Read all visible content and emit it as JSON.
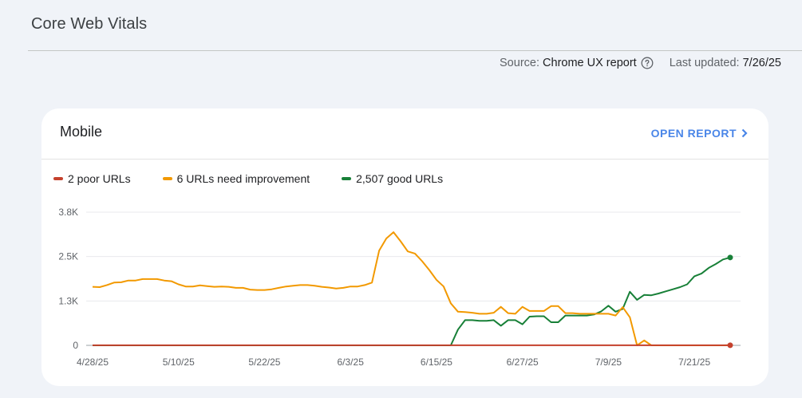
{
  "header": {
    "title": "Core Web Vitals",
    "source_label": "Source:",
    "source_value": "Chrome UX report",
    "updated_label": "Last updated:",
    "updated_value": "7/26/25"
  },
  "card": {
    "title": "Mobile",
    "open_report_label": "OPEN REPORT"
  },
  "legend": [
    {
      "label": "2 poor URLs",
      "color": "#c5412d"
    },
    {
      "label": "6 URLs need improvement",
      "color": "#f29900"
    },
    {
      "label": "2,507 good URLs",
      "color": "#188038"
    }
  ],
  "chart_data": {
    "type": "line",
    "title": "Mobile",
    "xlabel": "",
    "ylabel": "",
    "ylim": [
      0,
      3800
    ],
    "y_ticks": [
      "0",
      "1.3K",
      "2.5K",
      "3.8K"
    ],
    "x_ticks": [
      "4/28/25",
      "5/10/25",
      "5/22/25",
      "6/3/25",
      "6/15/25",
      "6/27/25",
      "7/9/25",
      "7/21/25"
    ],
    "x_start": "4/28/25",
    "x_end": "7/26/25",
    "grid": true,
    "legend_position": "top",
    "series": [
      {
        "name": "Poor",
        "color": "#c5412d",
        "values": [
          2,
          2,
          2,
          2,
          2,
          2,
          2,
          2,
          2,
          2,
          2,
          2,
          2,
          2,
          2,
          2,
          2,
          2,
          2,
          2,
          2,
          2,
          2,
          2,
          2,
          2,
          2,
          2,
          2,
          2,
          2,
          2,
          2,
          2,
          2,
          2,
          2,
          2,
          2,
          2,
          2,
          2,
          2,
          2,
          2,
          2,
          2,
          2,
          2,
          2,
          2,
          2,
          2,
          2,
          2,
          2,
          2,
          2,
          2,
          2,
          2,
          2,
          2,
          2,
          2,
          2,
          2,
          2,
          2,
          2,
          2,
          2,
          2,
          2,
          2,
          2,
          2,
          2,
          2,
          2,
          2,
          2,
          2,
          2,
          2,
          2,
          2,
          2,
          2,
          2
        ]
      },
      {
        "name": "Need improvement",
        "color": "#f29900",
        "values": [
          1670,
          1660,
          1720,
          1790,
          1800,
          1850,
          1850,
          1890,
          1890,
          1890,
          1850,
          1830,
          1740,
          1680,
          1680,
          1710,
          1690,
          1670,
          1680,
          1670,
          1640,
          1640,
          1590,
          1580,
          1580,
          1600,
          1640,
          1680,
          1700,
          1720,
          1720,
          1700,
          1670,
          1650,
          1620,
          1640,
          1680,
          1680,
          1720,
          1790,
          2700,
          3050,
          3230,
          2970,
          2680,
          2620,
          2400,
          2150,
          1870,
          1680,
          1200,
          960,
          950,
          930,
          900,
          900,
          930,
          1100,
          920,
          900,
          1100,
          980,
          980,
          980,
          1120,
          1120,
          920,
          920,
          900,
          900,
          900,
          900,
          900,
          850,
          1090,
          800,
          0,
          140,
          0,
          0,
          0,
          0,
          0,
          0,
          0,
          0,
          0,
          0,
          0,
          6
        ]
      },
      {
        "name": "Good",
        "color": "#188038",
        "values": [
          0,
          0,
          0,
          0,
          0,
          0,
          0,
          0,
          0,
          0,
          0,
          0,
          0,
          0,
          0,
          0,
          0,
          0,
          0,
          0,
          0,
          0,
          0,
          0,
          0,
          0,
          0,
          0,
          0,
          0,
          0,
          0,
          0,
          0,
          0,
          0,
          0,
          0,
          0,
          0,
          0,
          0,
          0,
          0,
          0,
          0,
          0,
          0,
          0,
          0,
          0,
          450,
          720,
          720,
          700,
          700,
          720,
          560,
          720,
          720,
          600,
          820,
          830,
          830,
          660,
          660,
          850,
          850,
          850,
          850,
          880,
          970,
          1130,
          960,
          1040,
          1530,
          1300,
          1440,
          1430,
          1480,
          1540,
          1600,
          1660,
          1740,
          1970,
          2050,
          2210,
          2320,
          2450,
          2507
        ]
      }
    ]
  }
}
